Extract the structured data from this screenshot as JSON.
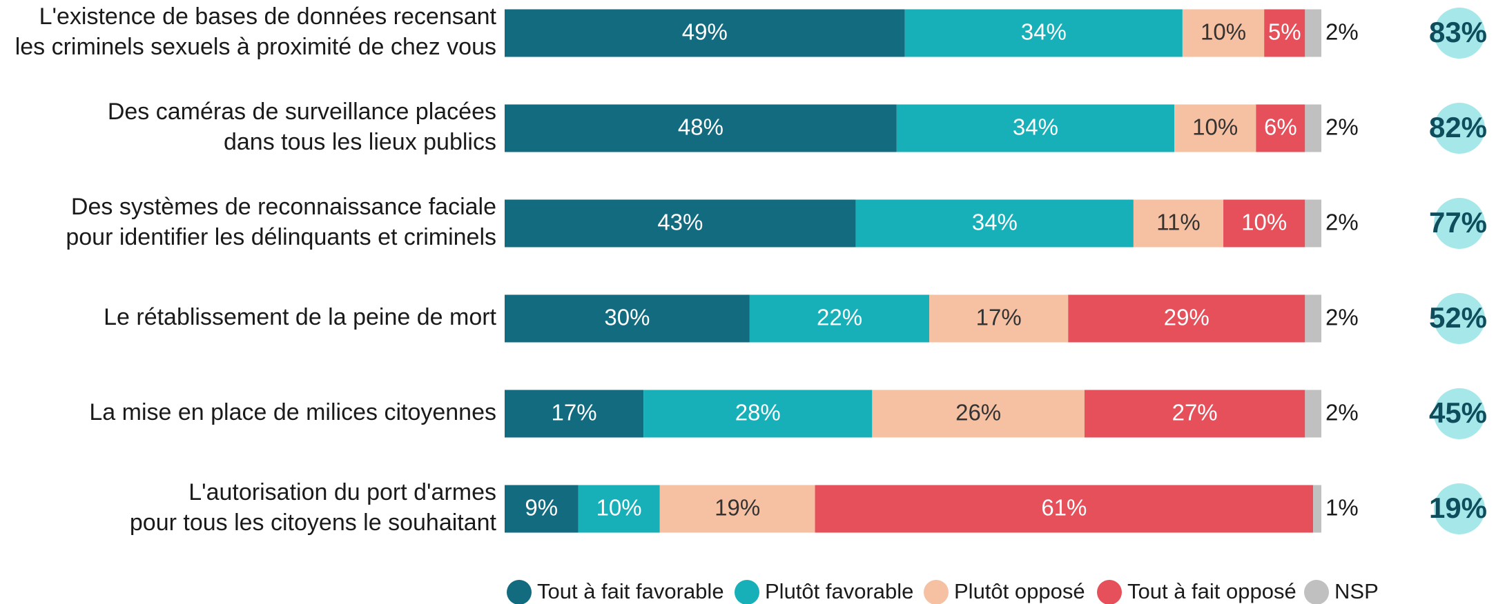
{
  "chart_data": {
    "type": "stacked-bar-horizontal",
    "categories": [
      [
        "L'existence de bases de données recensant",
        "les criminels sexuels à proximité de chez vous"
      ],
      [
        "Des caméras de surveillance placées",
        "dans tous les lieux publics"
      ],
      [
        "Des systèmes de reconnaissance faciale",
        "pour identifier les délinquants et criminels"
      ],
      [
        "Le rétablissement de la peine de mort"
      ],
      [
        "La mise en place de milices citoyennes"
      ],
      [
        "L'autorisation du port d'armes",
        "pour tous les citoyens le souhaitant"
      ]
    ],
    "xlim": [
      0,
      100
    ],
    "series": [
      {
        "name": "Tout à fait favorable",
        "color": "#136b80",
        "values": [
          49,
          48,
          43,
          30,
          17,
          9
        ],
        "value_labels": [
          "49%",
          "48%",
          "43%",
          "30%",
          "17%",
          "9%"
        ]
      },
      {
        "name": "Plutôt favorable",
        "color": "#17b0b8",
        "values": [
          34,
          34,
          34,
          22,
          28,
          10
        ],
        "value_labels": [
          "34%",
          "34%",
          "34%",
          "22%",
          "28%",
          "10%"
        ]
      },
      {
        "name": "Plutôt opposé",
        "color": "#f6c1a2",
        "values": [
          10,
          10,
          11,
          17,
          26,
          19
        ],
        "value_labels": [
          "10%",
          "10%",
          "11%",
          "17%",
          "26%",
          "19%"
        ]
      },
      {
        "name": "Tout à fait opposé",
        "color": "#e5505a",
        "values": [
          5,
          6,
          10,
          29,
          27,
          61
        ],
        "value_labels": [
          "5%",
          "6%",
          "10%",
          "29%",
          "27%",
          "61%"
        ]
      },
      {
        "name": "NSP",
        "color": "#c0c0c0",
        "values": [
          2,
          2,
          2,
          2,
          2,
          1
        ],
        "value_labels": [
          "2%",
          "2%",
          "2%",
          "2%",
          "2%",
          "1%"
        ]
      }
    ],
    "totals": {
      "values": [
        83,
        82,
        77,
        52,
        45,
        19
      ],
      "value_labels": [
        "83%",
        "82%",
        "77%",
        "52%",
        "45%",
        "19%"
      ],
      "color": "#a6e8ea"
    }
  }
}
